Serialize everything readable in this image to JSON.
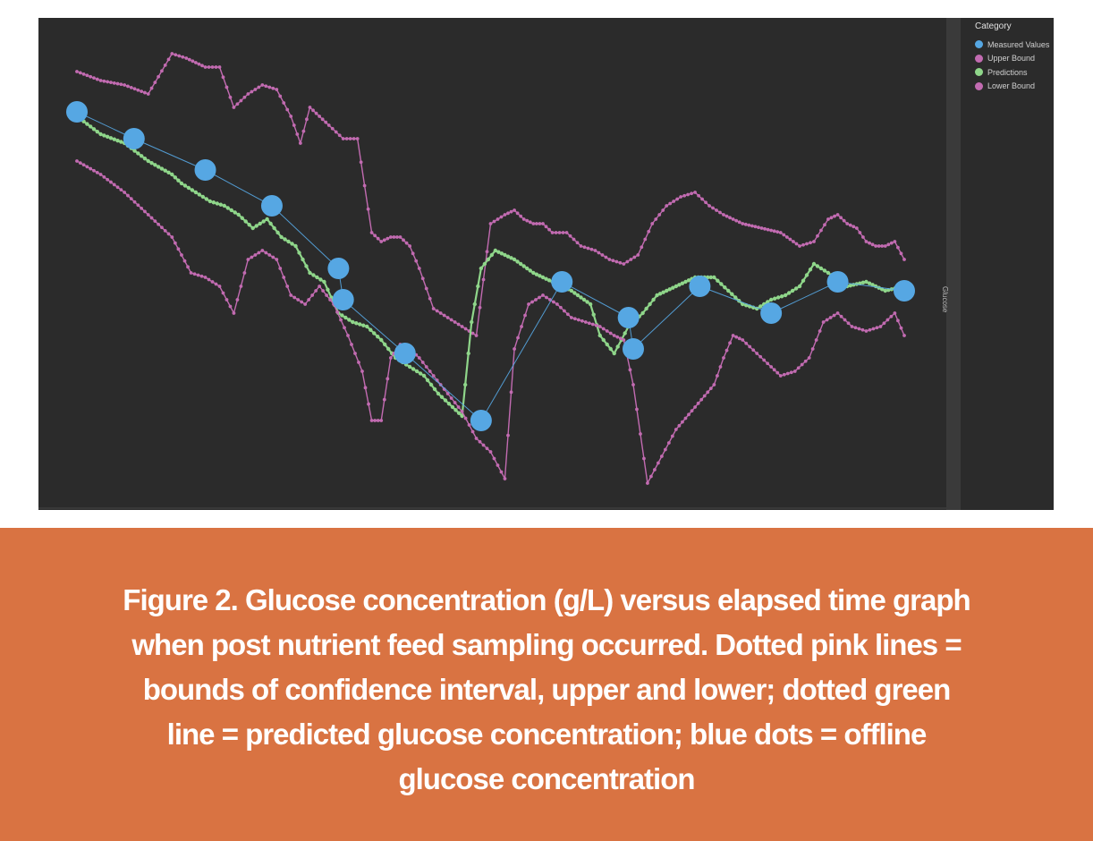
{
  "chart_data": {
    "type": "line",
    "title": "",
    "xlabel": "",
    "ylabel": "Glucose",
    "ylim": [
      0,
      100
    ],
    "grid": false,
    "legend": {
      "title": "Category",
      "placement": "top-right",
      "entries": [
        "Measured Values",
        "Upper Bound",
        "Predictions",
        "Lower Bound"
      ]
    },
    "series": [
      {
        "name": "Upper Bound",
        "color": "#c26bb1",
        "x": [
          0,
          5,
          10,
          15,
          20,
          23,
          27,
          30,
          33,
          36,
          39,
          42,
          45,
          47,
          49,
          51,
          53,
          56,
          59,
          62,
          64,
          66,
          68,
          70,
          72,
          75,
          78,
          81,
          84,
          87,
          90,
          92,
          94,
          96,
          98,
          100,
          103,
          106,
          109,
          112,
          115,
          118,
          121,
          124,
          127,
          130,
          133,
          136,
          140,
          144,
          148,
          152,
          155,
          158,
          160,
          162,
          164,
          166,
          168,
          170,
          172,
          174
        ],
        "y": [
          92,
          90,
          89,
          87,
          96,
          95,
          93,
          93,
          84,
          87,
          89,
          88,
          82,
          76,
          84,
          82,
          80,
          77,
          77,
          56,
          54,
          55,
          55,
          53,
          48,
          39,
          37,
          35,
          33,
          58,
          60,
          61,
          59,
          58,
          58,
          56,
          56,
          53,
          52,
          50,
          49,
          51,
          58,
          62,
          64,
          65,
          62,
          60,
          58,
          57,
          56,
          53,
          54,
          59,
          60,
          58,
          57,
          54,
          53,
          53,
          54,
          50
        ]
      },
      {
        "name": "Predictions",
        "color": "#8fd68a",
        "x": [
          0,
          5,
          10,
          15,
          20,
          22,
          25,
          28,
          31,
          34,
          37,
          40,
          43,
          46,
          49,
          52,
          55,
          58,
          61,
          64,
          67,
          70,
          73,
          76,
          79,
          81,
          83,
          85,
          88,
          92,
          96,
          100,
          104,
          108,
          110,
          113,
          116,
          119,
          122,
          126,
          130,
          134,
          137,
          140,
          143,
          146,
          149,
          152,
          155,
          158,
          162,
          166,
          170,
          174
        ],
        "y": [
          82,
          78,
          76,
          72,
          69,
          67,
          65,
          63,
          62,
          60,
          57,
          59,
          55,
          53,
          47,
          45,
          38,
          36,
          35,
          32,
          28,
          26,
          24,
          20,
          17,
          15,
          36,
          48,
          52,
          50,
          47,
          45,
          43,
          40,
          33,
          29,
          35,
          38,
          42,
          44,
          46,
          46,
          43,
          40,
          39,
          41,
          42,
          44,
          49,
          47,
          44,
          45,
          43,
          44
        ]
      },
      {
        "name": "Lower Bound",
        "color": "#c26bb1",
        "x": [
          0,
          5,
          10,
          15,
          20,
          24,
          27,
          30,
          33,
          36,
          39,
          42,
          45,
          48,
          51,
          54,
          57,
          60,
          62,
          64,
          66,
          68,
          70,
          72,
          75,
          78,
          81,
          84,
          87,
          90,
          92,
          95,
          98,
          101,
          104,
          107,
          110,
          113,
          115,
          117,
          120,
          123,
          126,
          130,
          134,
          136,
          138,
          140,
          143,
          146,
          148,
          151,
          154,
          157,
          160,
          163,
          166,
          169,
          172,
          174
        ],
        "y": [
          72,
          69,
          65,
          60,
          55,
          47,
          46,
          44,
          38,
          50,
          52,
          50,
          42,
          40,
          44,
          40,
          33,
          25,
          14,
          14,
          28,
          31,
          30,
          28,
          24,
          20,
          16,
          10,
          7,
          1,
          30,
          40,
          42,
          40,
          37,
          36,
          35,
          33,
          32,
          22,
          0,
          6,
          12,
          17,
          22,
          28,
          33,
          32,
          29,
          26,
          24,
          25,
          28,
          36,
          38,
          35,
          34,
          35,
          38,
          33
        ]
      },
      {
        "name": "Measured Values",
        "color": "#56a7e3",
        "x": [
          0,
          12,
          27,
          41,
          55,
          56,
          69,
          85,
          102,
          116,
          117,
          131,
          146,
          160,
          174
        ],
        "y": [
          83,
          77,
          70,
          62,
          48,
          41,
          29,
          14,
          45,
          37,
          30,
          44,
          38,
          45,
          43
        ]
      }
    ]
  },
  "caption": {
    "line1": "Figure 2. Glucose concentration (g/L) versus elapsed time graph",
    "line2": "when post nutrient feed sampling occurred. Dotted pink lines =",
    "line3": "bounds of confidence interval, upper and lower; dotted green",
    "line4": "line = predicted glucose concentration; blue dots = offline",
    "line5": "glucose concentration"
  }
}
